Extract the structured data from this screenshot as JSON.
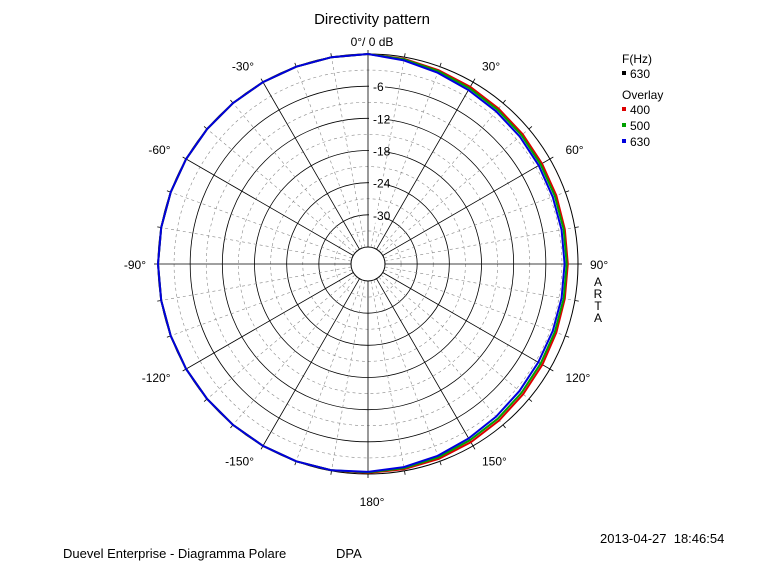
{
  "chart_data": {
    "type": "polar",
    "title": "Directivity pattern",
    "top_label": "0°/ 0 dB",
    "radial_axis": {
      "unit": "dB",
      "range": [
        -36,
        0
      ],
      "ring_labels": [
        "-6",
        "-12",
        "-18",
        "-24",
        "-30"
      ],
      "ring_values": [
        -6,
        -12,
        -18,
        -24,
        -30
      ],
      "minor_step": 3
    },
    "angle_axis": {
      "labels": [
        {
          "angle": 30,
          "text": "30°"
        },
        {
          "angle": 60,
          "text": "60°"
        },
        {
          "angle": 90,
          "text": "90°"
        },
        {
          "angle": 120,
          "text": "120°"
        },
        {
          "angle": 150,
          "text": "150°"
        },
        {
          "angle": 180,
          "text": "180°"
        },
        {
          "angle": -150,
          "text": "-150°"
        },
        {
          "angle": -120,
          "text": "-120°"
        },
        {
          "angle": -90,
          "text": "-90°"
        },
        {
          "angle": -60,
          "text": "-60°"
        },
        {
          "angle": -30,
          "text": "-30°"
        }
      ],
      "major_spokes_deg": 30,
      "minor_spokes_deg": 10
    },
    "grid": true,
    "legend": {
      "placement": "top-right",
      "freq_header": "F(Hz)",
      "freq_value": "630",
      "freq_color": "#000000",
      "overlay_header": "Overlay",
      "entries": [
        {
          "label": "400",
          "color": "#dd0000"
        },
        {
          "label": "500",
          "color": "#00a000"
        },
        {
          "label": "630",
          "color": "#0000dd"
        }
      ]
    },
    "series": [
      {
        "name": "400",
        "color": "#dd0000",
        "angles": [
          -180,
          -170,
          -160,
          -150,
          -140,
          -130,
          -120,
          -110,
          -100,
          -90,
          -80,
          -70,
          -60,
          -50,
          -40,
          -30,
          -20,
          -10,
          0,
          10,
          20,
          30,
          40,
          50,
          60,
          70,
          80,
          90,
          100,
          110,
          120,
          130,
          140,
          150,
          160,
          170,
          180
        ],
        "levels": [
          -0.2,
          -0.1,
          0,
          0,
          0,
          0,
          0,
          0,
          0,
          0,
          0,
          0,
          0,
          0,
          0,
          0,
          0,
          0,
          0,
          -0.3,
          -0.7,
          -1.0,
          -1.3,
          -1.5,
          -1.7,
          -1.8,
          -1.9,
          -1.9,
          -1.9,
          -1.8,
          -1.6,
          -1.4,
          -1.1,
          -0.8,
          -0.5,
          -0.3,
          -0.2
        ]
      },
      {
        "name": "500",
        "color": "#00a000",
        "angles": [
          -180,
          -170,
          -160,
          -150,
          -140,
          -130,
          -120,
          -110,
          -100,
          -90,
          -80,
          -70,
          -60,
          -50,
          -40,
          -30,
          -20,
          -10,
          0,
          10,
          20,
          30,
          40,
          50,
          60,
          70,
          80,
          90,
          100,
          110,
          120,
          130,
          140,
          150,
          160,
          170,
          180
        ],
        "levels": [
          -0.3,
          -0.1,
          0,
          0,
          0,
          0,
          0,
          0,
          0,
          0,
          0,
          0,
          0,
          0,
          0,
          0,
          0,
          0,
          0,
          -0.4,
          -0.9,
          -1.3,
          -1.6,
          -1.8,
          -2.0,
          -2.1,
          -2.1,
          -2.1,
          -2.1,
          -2.1,
          -2.0,
          -1.8,
          -1.5,
          -1.2,
          -0.8,
          -0.5,
          -0.3
        ]
      },
      {
        "name": "630",
        "color": "#0000dd",
        "angles": [
          -180,
          -170,
          -160,
          -150,
          -140,
          -130,
          -120,
          -110,
          -100,
          -90,
          -80,
          -70,
          -60,
          -50,
          -40,
          -30,
          -20,
          -10,
          0,
          10,
          20,
          30,
          40,
          50,
          60,
          70,
          80,
          90,
          100,
          110,
          120,
          130,
          140,
          150,
          160,
          170,
          180
        ],
        "levels": [
          -0.4,
          -0.1,
          0,
          0,
          0,
          0,
          0,
          0,
          0,
          0,
          0,
          0,
          0,
          0,
          0,
          0,
          0,
          0,
          0,
          -0.6,
          -1.2,
          -1.7,
          -2.0,
          -2.2,
          -2.4,
          -2.5,
          -2.5,
          -2.5,
          -2.5,
          -2.5,
          -2.5,
          -2.3,
          -2.0,
          -1.6,
          -1.1,
          -0.7,
          -0.4
        ]
      }
    ],
    "side_text": [
      "A",
      "R",
      "T",
      "A"
    ]
  },
  "footer": {
    "timestamp": "2013-04-27  18:46:54",
    "left_text": "Duevel Enterprise - Diagramma Polare",
    "right_text": "DPA"
  }
}
